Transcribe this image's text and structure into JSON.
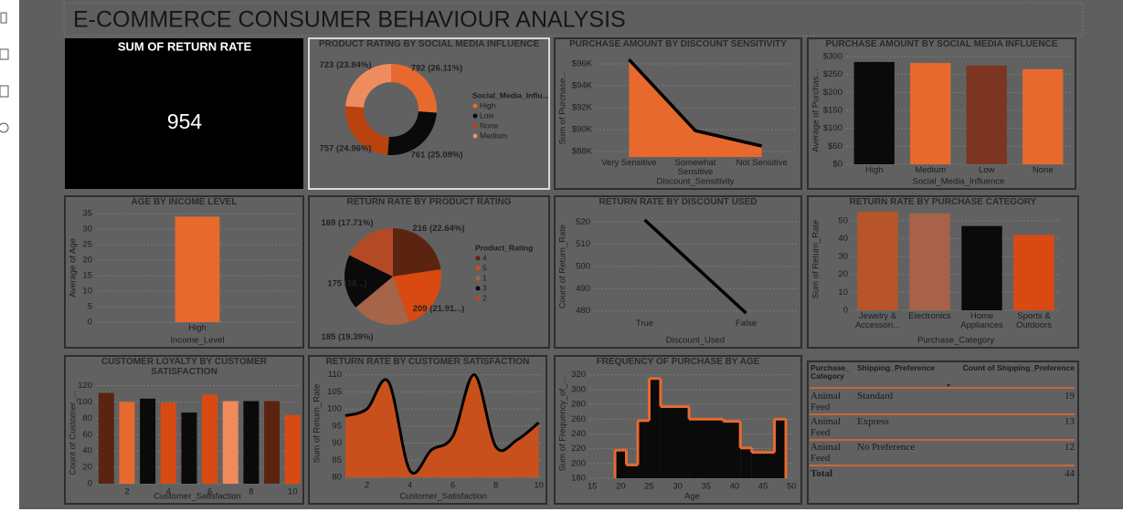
{
  "title": "E-COMMERCE CONSUMER BEHAVIOUR ANALYSIS",
  "card": {
    "title": "SUM OF RETURN RATE",
    "value": 954
  },
  "chart_data": [
    {
      "type": "donut",
      "title": "PRODUCT RATING BY SOCIAL MEDIA INFLUENCE",
      "legend_title": "Social_Media_Influ...",
      "categories": [
        "High",
        "Low",
        "None",
        "Medium"
      ],
      "values": [
        792,
        761,
        757,
        723
      ],
      "value_labels": [
        "792 (26.11%)",
        "761 (25.09%)",
        "757 (24.96%)",
        "723 (23.84%)"
      ],
      "colors": [
        "#e8692e",
        "#0a0a0a",
        "#b8430e",
        "#ef8c5f"
      ]
    },
    {
      "type": "line",
      "title": "PURCHASE AMOUNT BY DISCOUNT SENSITIVITY",
      "area": true,
      "fill": "#e8692e",
      "color": "#000000",
      "categories": [
        "Very Sensitive",
        "Somewhat Sensitive",
        "Not Sensitive"
      ],
      "values": [
        96400,
        89900,
        88500
      ],
      "ylim": [
        87500,
        96500
      ],
      "yticks": [
        {
          "value": 88000,
          "label": "$88K"
        },
        {
          "value": 90000,
          "label": "$90K"
        },
        {
          "value": 92000,
          "label": "$92K"
        },
        {
          "value": 94000,
          "label": "$94K"
        },
        {
          "value": 96000,
          "label": "$96K"
        }
      ],
      "grid": true,
      "y_label": "Sum of Purchase...",
      "x_label": "Discount_Sensitivity"
    },
    {
      "type": "bar",
      "title": "PURCHASE AMOUNT BY SOCIAL MEDIA INFLUENCE",
      "categories": [
        "High",
        "Medium",
        "Low",
        "None"
      ],
      "values": [
        285,
        282,
        275,
        265
      ],
      "colors": [
        "#0a0a0a",
        "#e8692e",
        "#7b3520",
        "#e8692e"
      ],
      "ylim": [
        0,
        300
      ],
      "yticks": [
        {
          "value": 0,
          "label": "$0"
        },
        {
          "value": 50,
          "label": "$50"
        },
        {
          "value": 100,
          "label": "$100"
        },
        {
          "value": 150,
          "label": "$150"
        },
        {
          "value": 200,
          "label": "$200"
        },
        {
          "value": 250,
          "label": "$250"
        },
        {
          "value": 300,
          "label": "$300"
        }
      ],
      "grid": true,
      "y_label": "Average of Purchas...",
      "x_label": "Social_Media_Influence"
    },
    {
      "type": "bar",
      "title": "AGE BY INCOME LEVEL",
      "categories": [
        "High"
      ],
      "values": [
        34
      ],
      "colors": [
        "#e8692e"
      ],
      "ylim": [
        0,
        35
      ],
      "yticks": [
        0,
        5,
        10,
        15,
        20,
        25,
        30,
        35
      ],
      "grid": true,
      "y_label": "Average of Age",
      "x_label": "Income_Level"
    },
    {
      "type": "pie",
      "title": "RETURN RATE BY PRODUCT RATING",
      "legend_title": "Product_Rating",
      "categories": [
        "4",
        "5",
        "1",
        "3",
        "2"
      ],
      "values": [
        216,
        209,
        185,
        175,
        169
      ],
      "value_labels": [
        "216 (22.64%)",
        "209 (21.91...)",
        "185 (19.39%)",
        "175 (18...)",
        "169 (17.71%)"
      ],
      "colors": [
        "#5a2410",
        "#d94a12",
        "#a66448",
        "#0a0a0a",
        "#b44a25"
      ]
    },
    {
      "type": "line",
      "title": "RETURN RATE BY DISCOUNT USED",
      "area": false,
      "color": "#000000",
      "categories": [
        "True",
        "False"
      ],
      "values": [
        521,
        479
      ],
      "ylim": [
        477,
        523
      ],
      "yticks": [
        480,
        490,
        500,
        510,
        520
      ],
      "grid": true,
      "y_label": "Count of Return_Rate",
      "x_label": "Discount_Used"
    },
    {
      "type": "bar",
      "title": "RETURN RATE BY PURCHASE CATEGORY",
      "categories": [
        "Jewelry & Accessori...",
        "Electronics",
        "Home Appliances",
        "Sports & Outdoors"
      ],
      "values": [
        55,
        54,
        47,
        42
      ],
      "colors": [
        "#b8542a",
        "#a8614a",
        "#0a0a0a",
        "#d94a12"
      ],
      "ylim": [
        0,
        57
      ],
      "yticks": [
        0,
        10,
        20,
        30,
        40,
        50
      ],
      "grid": true,
      "y_label": "Sum of Return_Rate",
      "x_label": "Purchase_Category"
    },
    {
      "type": "bar",
      "title": "CUSTOMER LOYALTY BY CUSTOMER SATISFACTION",
      "x": [
        1,
        2,
        3,
        4,
        5,
        6,
        7,
        8,
        9,
        10
      ],
      "values": [
        111,
        100,
        104,
        99,
        87,
        109,
        101,
        101,
        101,
        84
      ],
      "colors": [
        "#5a2410",
        "#e8692e",
        "#0a0a0a",
        "#d94a12",
        "#0a0a0a",
        "#d94a12",
        "#f08a5d",
        "#0a0a0a",
        "#5a2410",
        "#d94a12"
      ],
      "xlim": [
        0.5,
        10.3
      ],
      "xticks": [
        2,
        4,
        6,
        8,
        10
      ],
      "ylim": [
        0,
        125
      ],
      "yticks": [
        0,
        20,
        40,
        60,
        80,
        100,
        120
      ],
      "grid": true,
      "y_label": "Count of Customer_...",
      "x_label": "Customer_Satisfaction"
    },
    {
      "type": "area",
      "title": "RETURN RATE BY CUSTOMER SATISFACTION",
      "fill": "#c8501c",
      "color": "#000000",
      "x": [
        1,
        2,
        3,
        4,
        5,
        6,
        7,
        8,
        9,
        10
      ],
      "values": [
        98,
        100,
        108,
        82,
        88,
        92,
        110,
        89,
        91,
        96
      ],
      "xlim": [
        1,
        10.1
      ],
      "xticks": [
        2,
        4,
        6,
        8,
        10
      ],
      "ylim": [
        80,
        111.5
      ],
      "yticks": [
        80,
        85,
        90,
        95,
        100,
        105,
        110
      ],
      "grid": true,
      "y_label": "Sum of Return_Rate",
      "x_label": "Customer_Satisfaction"
    },
    {
      "type": "histogram",
      "title": "FREQUENCY OF PURCHASE BY AGE",
      "fill": "#0a0a0a",
      "color": "#e8692e",
      "bins": [
        19,
        21,
        23,
        25,
        27,
        32,
        38,
        41,
        43,
        47,
        49
      ],
      "values": [
        218,
        198,
        258,
        315,
        277,
        260,
        257,
        221,
        215,
        260
      ],
      "xlim": [
        14.5,
        50.6
      ],
      "xticks": [
        15,
        20,
        25,
        30,
        35,
        40,
        45,
        50
      ],
      "ylim": [
        180,
        327
      ],
      "yticks": [
        180,
        200,
        220,
        240,
        260,
        280,
        300,
        320
      ],
      "grid": true,
      "y_label": "Sum of Frequency_of_...",
      "x_label": "Age"
    }
  ],
  "table": {
    "headers": [
      "Purchase_ Category",
      "Shipping_Preference",
      "Count of Shipping_Preference"
    ],
    "rows": [
      [
        "Animal Feed",
        "Standard",
        19
      ],
      [
        "Animal Feed",
        "Express",
        13
      ],
      [
        "Animal Feed",
        "No Preference",
        12
      ]
    ],
    "total": {
      "label": "Total",
      "value": 44
    }
  }
}
